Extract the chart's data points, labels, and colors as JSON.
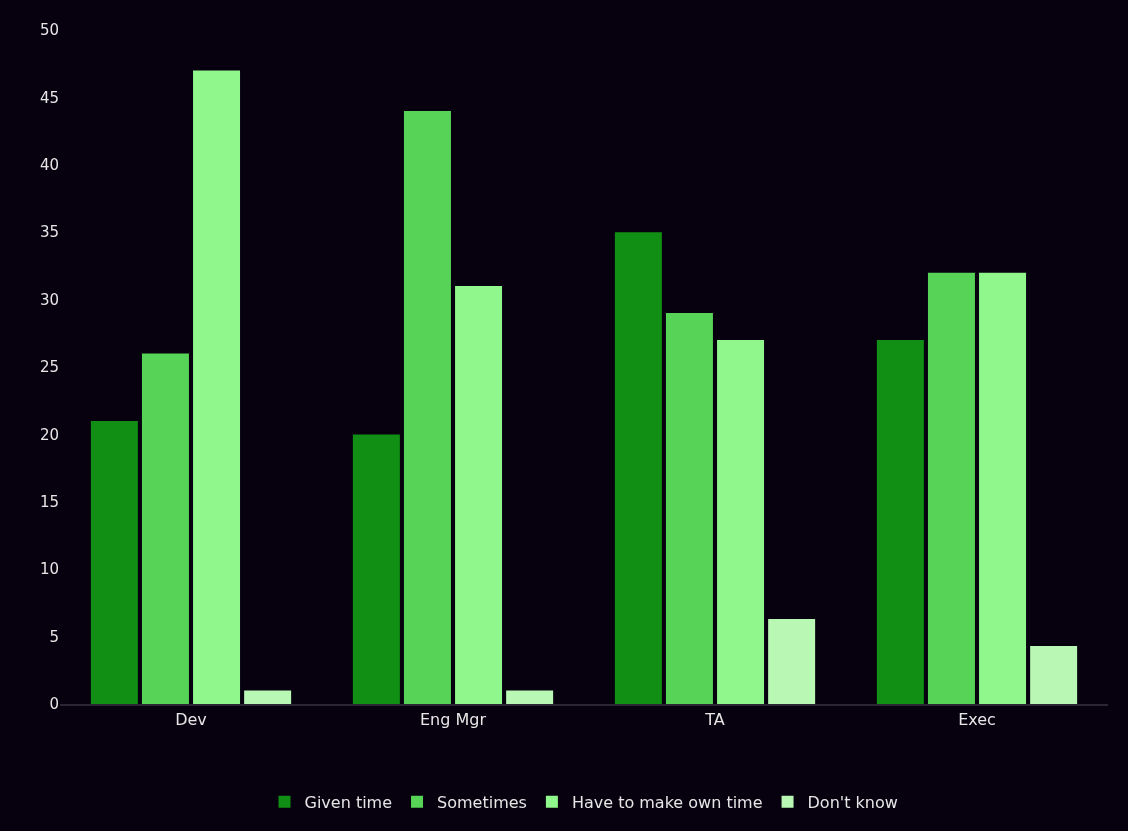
{
  "chart_data": {
    "type": "bar",
    "categories": [
      "Dev",
      "Eng Mgr",
      "TA",
      "Exec"
    ],
    "series": [
      {
        "name": "Given time",
        "color": "#118f14",
        "values": [
          21,
          20,
          35,
          27
        ]
      },
      {
        "name": "Sometimes",
        "color": "#57d357",
        "values": [
          26,
          44,
          29,
          32
        ]
      },
      {
        "name": "Have to make own time",
        "color": "#8ff78b",
        "values": [
          47,
          31,
          27,
          32
        ]
      },
      {
        "name": "Don't know",
        "color": "#b9f7b5",
        "values": [
          1,
          1,
          6.3,
          4.3
        ]
      }
    ],
    "ylim": [
      0,
      50
    ],
    "yticks": [
      0,
      5,
      10,
      15,
      20,
      25,
      30,
      35,
      40,
      45,
      50
    ],
    "grid": false,
    "legend": "bottom"
  }
}
